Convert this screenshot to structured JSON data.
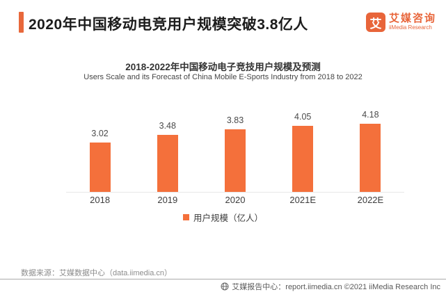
{
  "header": {
    "title": "2020年中国移动电竞用户规模突破3.8亿人"
  },
  "logo": {
    "mark": "艾",
    "name_cn": "艾媒咨询",
    "name_en": "iiMedia Research",
    "color": "#E8653A"
  },
  "chart_data": {
    "type": "bar",
    "title": "2018-2022年中国移动电子竞技用户规模及预测",
    "subtitle": "Users Scale and its Forecast of China  Mobile E-Sports Industry from 2018 to 2022",
    "categories": [
      "2018",
      "2019",
      "2020",
      "2021E",
      "2022E"
    ],
    "values": [
      3.02,
      3.48,
      3.83,
      4.05,
      4.18
    ],
    "data_labels": [
      "3.02",
      "3.48",
      "3.83",
      "4.05",
      "4.18"
    ],
    "legend": [
      "用户规模（亿人）"
    ],
    "legend_position": "bottom",
    "bar_color": "#F4703B",
    "ylim": [
      0,
      4.5
    ],
    "grid": false,
    "xlabel": "",
    "ylabel": ""
  },
  "footer": {
    "source": "数据来源：艾媒数据中心（data.iimedia.cn）",
    "report_center": "艾媒报告中心：report.iimedia.cn ©2021  iiMedia Research Inc"
  },
  "colors": {
    "accent": "#E8683B",
    "bar": "#F4703B"
  },
  "icons": {
    "footer": "globe-icon"
  }
}
